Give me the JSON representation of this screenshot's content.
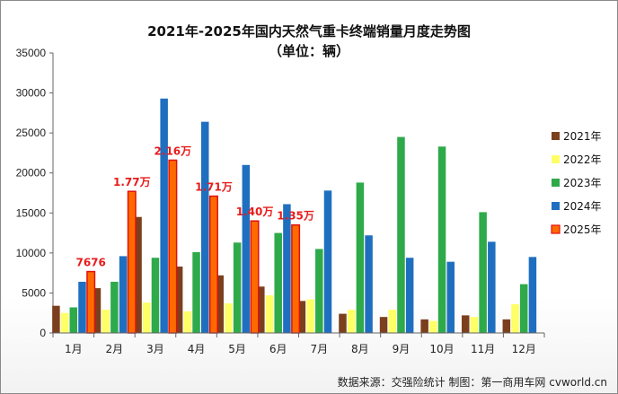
{
  "chart_data": {
    "type": "bar",
    "title": "2021年-2025年国内天然气重卡终端销量月度走势图",
    "subtitle": "（单位：辆）",
    "categories": [
      "1月",
      "2月",
      "3月",
      "4月",
      "5月",
      "6月",
      "7月",
      "8月",
      "9月",
      "10月",
      "11月",
      "12月"
    ],
    "ylim": [
      0,
      35000
    ],
    "yticks": [
      0,
      5000,
      10000,
      15000,
      20000,
      25000,
      30000,
      35000
    ],
    "legend_position": "right",
    "grid": false,
    "series": [
      {
        "name": "2021年",
        "color": "#7b3f1e",
        "values": [
          3400,
          5600,
          14500,
          8300,
          7200,
          5800,
          4000,
          2400,
          2000,
          1700,
          2200,
          1700
        ]
      },
      {
        "name": "2022年",
        "color": "#ffff66",
        "values": [
          2500,
          2900,
          3800,
          2700,
          3700,
          4700,
          4200,
          2900,
          2900,
          1500,
          2000,
          3600
        ]
      },
      {
        "name": "2023年",
        "color": "#2eaa4a",
        "values": [
          3200,
          6400,
          9400,
          10100,
          11300,
          12500,
          10500,
          18800,
          24500,
          23300,
          15100,
          6100
        ]
      },
      {
        "name": "2024年",
        "color": "#1f6fc0",
        "values": [
          6400,
          9600,
          29300,
          26400,
          21000,
          16100,
          17800,
          12200,
          9400,
          8900,
          11400,
          9500
        ]
      },
      {
        "name": "2025年",
        "color": "#ff6a00",
        "values": [
          7676,
          17700,
          21600,
          17100,
          14000,
          13500,
          null,
          null,
          null,
          null,
          null,
          null
        ]
      }
    ],
    "data_labels": [
      {
        "category": "1月",
        "text": "7676"
      },
      {
        "category": "2月",
        "text": "1.77万"
      },
      {
        "category": "3月",
        "text": "2.16万"
      },
      {
        "category": "4月",
        "text": "1.71万"
      },
      {
        "category": "5月",
        "text": "1.40万"
      },
      {
        "category": "6月",
        "text": "1.35万"
      }
    ],
    "source": "数据来源：交强险统计  制图：第一商用车网 cvworld.cn"
  }
}
